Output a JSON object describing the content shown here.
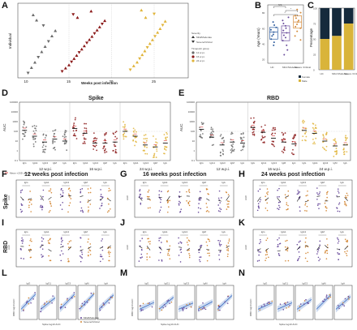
{
  "colors": {
    "tp12": "#6b6b6b",
    "tp16": "#8b1a1a",
    "tp24": "#e0b43a",
    "mild": "#6a4c9c",
    "severe": "#d48a3a",
    "hc_box": "#2f5d9e",
    "female": "#152a3c",
    "male": "#d9b43a",
    "fit": "#3a6fc4",
    "red_ref": "#d83030"
  },
  "panel_labels": [
    "A",
    "B",
    "C",
    "D",
    "E",
    "F",
    "G",
    "H",
    "I",
    "J",
    "K",
    "L",
    "M",
    "N"
  ],
  "panelA": {
    "ylabel": "Individual",
    "xlabel": "Weeks post infection",
    "xticks": [
      "10",
      "15",
      "20",
      "25"
    ],
    "legend": {
      "severity_title": "Severity",
      "severity_items": [
        "Mild/Moderate",
        "Severe/Critical"
      ],
      "timepoint_title": "Timepoint group",
      "timepoint_items": [
        "12 w.p.i.",
        "16 w.p.i.",
        "24 w.p.i."
      ]
    }
  },
  "panelB": {
    "ylabel": "Age (Years)",
    "categories": [
      "HC",
      "Mild /Moderate",
      "Severe /Critical"
    ],
    "yticks": [
      "20",
      "40",
      "60",
      "80"
    ],
    "sig": [
      "NS",
      "*",
      "*"
    ]
  },
  "panelC": {
    "ylabel": "Percentage",
    "categories": [
      "HC",
      "Mild /Moderate",
      "Severe /Critical"
    ],
    "yticks": [
      "0",
      "25",
      "50",
      "75",
      "100"
    ],
    "legend": [
      "Female",
      "Male"
    ]
  },
  "panelD": {
    "title": "Spike",
    "ylabel": "AUC"
  },
  "panelE": {
    "title": "RBD",
    "ylabel": "AUC"
  },
  "isotypes": [
    "IgG",
    "IgG1",
    "IgG3",
    "IgM",
    "IgA"
  ],
  "timepoints": [
    "12 w.p.i.",
    "16 w.p.i.",
    "24 w.p.i."
  ],
  "auc_ticks": [
    "100000",
    "10000",
    "1000",
    "100",
    "10",
    "1",
    "0.1"
  ],
  "ref_note": "Mean +2SD of controls",
  "row_labels": {
    "spike": "Spike",
    "rbd": "RBD"
  },
  "col_titles": [
    "12 weeks post infection",
    "16 weeks post infection",
    "24 weeks post infection"
  ],
  "row2_ylabel": "AUC",
  "corr": {
    "ylabel": "RBD log10 AUC",
    "xlabel": "Spike log10 AUC",
    "legend": [
      "Mild/Moderate",
      "Severe/Critical"
    ]
  },
  "chart_data": [
    {
      "id": "A",
      "type": "scatter",
      "title": "",
      "xlabel": "Weeks post infection",
      "ylabel": "Individual",
      "xlim": [
        9,
        29
      ],
      "series": [
        {
          "name": "12 w.p.i.",
          "x": [
            10.2,
            10.6,
            11.0,
            11.4,
            11.8,
            12.2,
            12.6,
            13.0,
            13.4,
            12.0,
            11.2,
            10.8
          ]
        },
        {
          "name": "16 w.p.i.",
          "x": [
            14.2,
            14.6,
            15.0,
            15.3,
            15.6,
            15.9,
            16.2,
            16.5,
            16.8,
            17.1,
            17.4,
            17.7,
            18.0,
            18.3,
            18.6,
            18.9,
            19.2,
            16.0,
            15.5,
            17.6
          ]
        },
        {
          "name": "24 w.p.i.",
          "x": [
            22.2,
            22.6,
            23.0,
            23.3,
            23.6,
            23.9,
            24.2,
            24.5,
            24.8,
            25.1,
            25.4,
            25.7,
            26.0,
            26.3,
            24.0,
            25.0,
            23.5
          ]
        }
      ]
    },
    {
      "id": "B",
      "type": "scatter",
      "title": "",
      "ylabel": "Age (Years)",
      "ylim": [
        15,
        90
      ],
      "categories": [
        "HC",
        "Mild /Moderate",
        "Severe /Critical"
      ],
      "series": [
        {
          "name": "HC",
          "values": [
            38,
            42,
            46,
            50,
            52,
            55,
            58,
            61,
            64,
            68
          ]
        },
        {
          "name": "Mild /Moderate",
          "values": [
            26,
            32,
            38,
            44,
            48,
            51,
            54,
            57,
            60,
            63,
            66,
            70,
            74
          ]
        },
        {
          "name": "Severe /Critical",
          "values": [
            45,
            50,
            56,
            60,
            62,
            65,
            68,
            70,
            73,
            76,
            80,
            84
          ]
        }
      ]
    },
    {
      "id": "C",
      "type": "bar",
      "title": "",
      "ylabel": "Percentage",
      "ylim": [
        0,
        100
      ],
      "categories": [
        "HC",
        "Mild /Moderate",
        "Severe /Critical"
      ],
      "series": [
        {
          "name": "Male",
          "values": [
            50,
            55,
            75
          ]
        },
        {
          "name": "Female",
          "values": [
            50,
            45,
            25
          ]
        }
      ]
    },
    {
      "id": "D",
      "type": "scatter",
      "title": "Spike",
      "ylabel": "AUC",
      "categories": [
        "IgG",
        "IgG1",
        "IgG3",
        "IgM",
        "IgA"
      ],
      "groups": [
        "12 w.p.i.",
        "16 w.p.i.",
        "24 w.p.i."
      ],
      "medians_log10": [
        [
          2.1,
          1.5,
          0.9,
          1.2,
          1.0
        ],
        [
          2.3,
          1.8,
          0.8,
          0.8,
          0.9
        ],
        [
          2.0,
          1.5,
          0.6,
          0.4,
          0.8
        ]
      ]
    },
    {
      "id": "E",
      "type": "scatter",
      "title": "RBD",
      "ylabel": "AUC",
      "categories": [
        "IgG",
        "IgG1",
        "IgG3",
        "IgM",
        "IgA"
      ],
      "groups": [
        "12 w.p.i.",
        "16 w.p.i.",
        "24 w.p.i."
      ],
      "medians_log10": [
        [
          2.2,
          1.4,
          0.6,
          0.9,
          0.8
        ],
        [
          2.4,
          1.9,
          1.3,
          0.9,
          0.7
        ],
        [
          2.1,
          1.8,
          1.0,
          0.5,
          0.6
        ]
      ]
    }
  ]
}
